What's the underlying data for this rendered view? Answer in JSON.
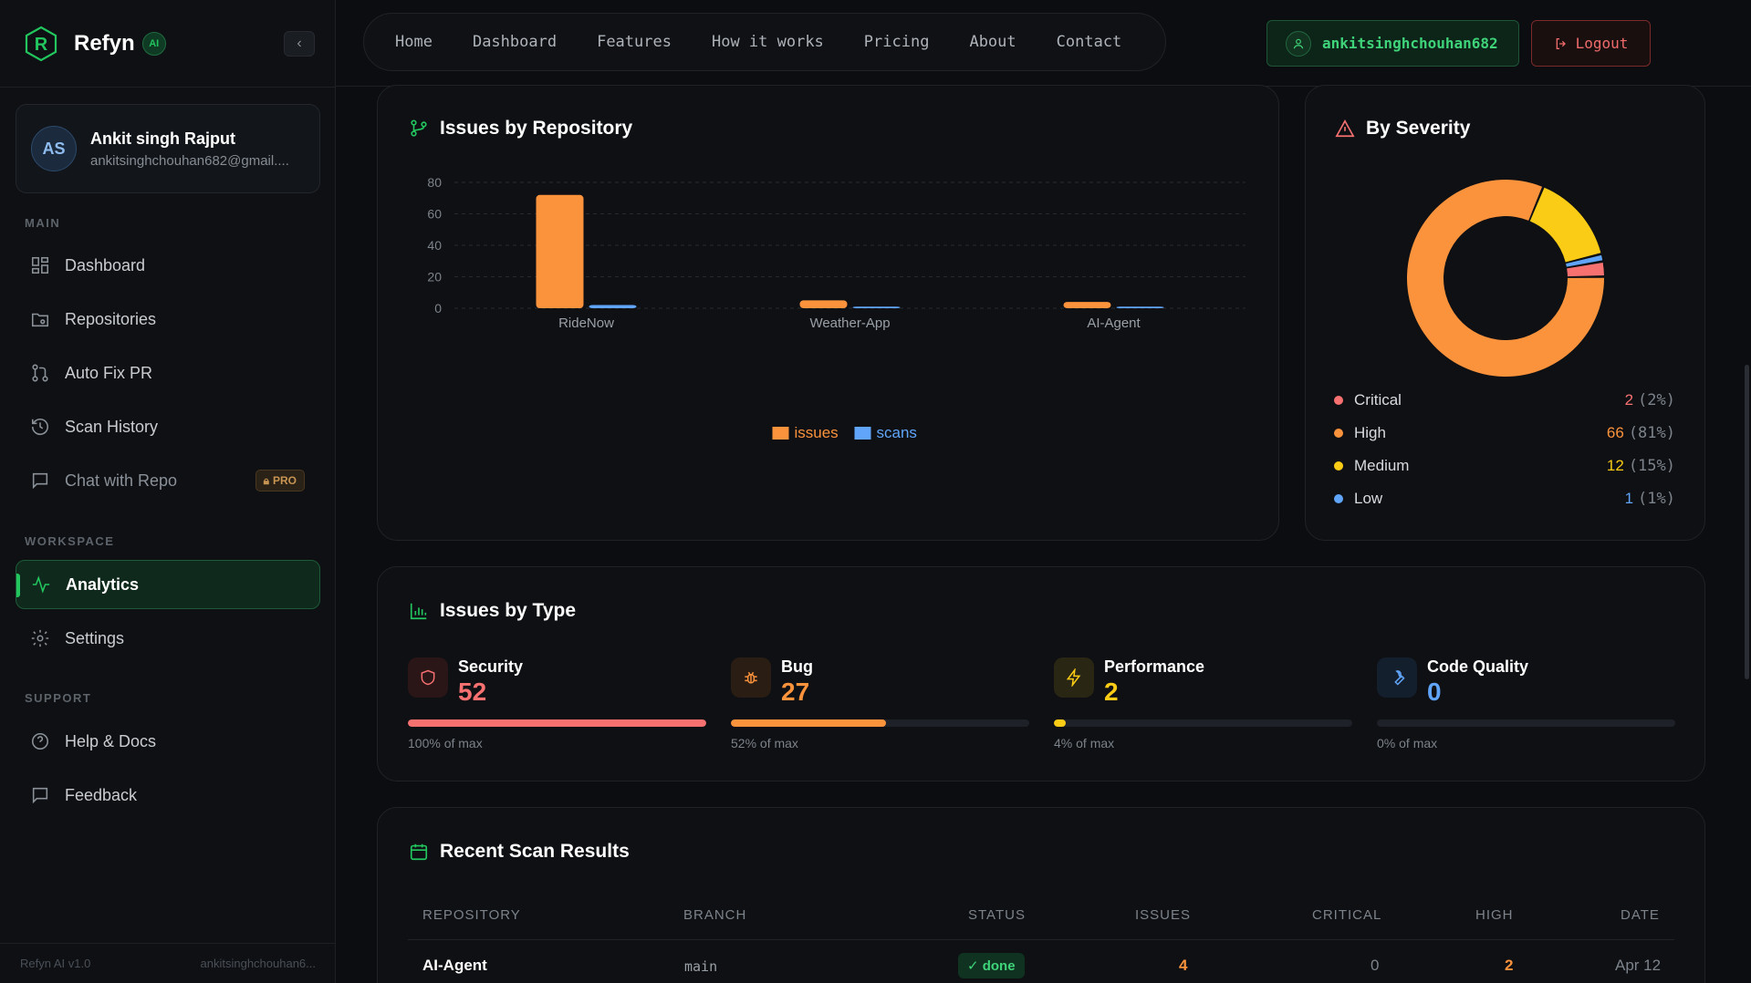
{
  "brand": {
    "name": "Refyn",
    "badge": "AI"
  },
  "user": {
    "initials": "AS",
    "name": "Ankit singh Rajput",
    "email": "ankitsinghchouhan682@gmail...."
  },
  "sidebar": {
    "sections": {
      "main": "MAIN",
      "workspace": "WORKSPACE",
      "support": "SUPPORT"
    },
    "items": [
      {
        "label": "Dashboard",
        "icon": "grid-icon"
      },
      {
        "label": "Repositories",
        "icon": "folder-git-icon"
      },
      {
        "label": "Auto Fix PR",
        "icon": "pull-request-icon"
      },
      {
        "label": "Scan History",
        "icon": "history-icon"
      },
      {
        "label": "Chat with Repo",
        "icon": "chat-icon",
        "badge": "PRO"
      },
      {
        "label": "Analytics",
        "icon": "activity-icon",
        "active": true
      },
      {
        "label": "Settings",
        "icon": "gear-icon"
      },
      {
        "label": "Help & Docs",
        "icon": "help-icon"
      },
      {
        "label": "Feedback",
        "icon": "message-icon"
      }
    ],
    "footer": {
      "version": "Refyn AI v1.0",
      "user": "ankitsinghchouhan6..."
    }
  },
  "topnav": {
    "links": [
      "Home",
      "Dashboard",
      "Features",
      "How it works",
      "Pricing",
      "About",
      "Contact"
    ],
    "username": "ankitsinghchouhan682",
    "logout_label": "Logout"
  },
  "repo_card": {
    "title": "Issues by Repository"
  },
  "severity_card": {
    "title": "By Severity",
    "items": [
      {
        "label": "Critical",
        "value": "2",
        "pct": "(2%)",
        "color": "#f87171"
      },
      {
        "label": "High",
        "value": "66",
        "pct": "(81%)",
        "color": "#fb923c"
      },
      {
        "label": "Medium",
        "value": "12",
        "pct": "(15%)",
        "color": "#facc15"
      },
      {
        "label": "Low",
        "value": "1",
        "pct": "(1%)",
        "color": "#60a5fa"
      }
    ]
  },
  "type_card": {
    "title": "Issues by Type",
    "items": [
      {
        "label": "Security",
        "value": "52",
        "caption": "100% of max",
        "fraction": 1.0,
        "color": "#f87171",
        "icon": "shield-icon"
      },
      {
        "label": "Bug",
        "value": "27",
        "caption": "52% of max",
        "fraction": 0.52,
        "color": "#fb923c",
        "icon": "bug-icon"
      },
      {
        "label": "Performance",
        "value": "2",
        "caption": "4% of max",
        "fraction": 0.04,
        "color": "#facc15",
        "icon": "zap-icon"
      },
      {
        "label": "Code Quality",
        "value": "0",
        "caption": "0% of max",
        "fraction": 0.0,
        "color": "#60a5fa",
        "icon": "wrench-icon"
      }
    ]
  },
  "scans_card": {
    "title": "Recent Scan Results",
    "columns": [
      "REPOSITORY",
      "BRANCH",
      "STATUS",
      "ISSUES",
      "CRITICAL",
      "HIGH",
      "DATE"
    ],
    "rows": [
      {
        "repository": "AI-Agent",
        "branch": "main",
        "status": "✓ done",
        "issues": "4",
        "critical": "0",
        "high": "2",
        "date": "Apr 12"
      }
    ]
  },
  "chart_data": [
    {
      "type": "bar",
      "categories": [
        "RideNow",
        "Weather-App",
        "AI-Agent"
      ],
      "series": [
        {
          "name": "issues",
          "values": [
            72,
            5,
            4
          ],
          "color": "#fb923c"
        },
        {
          "name": "scans",
          "values": [
            2,
            1,
            1
          ],
          "color": "#60a5fa"
        }
      ],
      "yticks": [
        "0",
        "20",
        "40",
        "60",
        "80"
      ],
      "ylim": [
        0,
        80
      ],
      "grid": true,
      "legend": "bottom"
    },
    {
      "type": "pie",
      "categories": [
        "Critical",
        "High",
        "Medium",
        "Low"
      ],
      "values": [
        2,
        66,
        12,
        1
      ],
      "colors": [
        "#f87171",
        "#fb923c",
        "#facc15",
        "#60a5fa"
      ],
      "donut": true
    }
  ]
}
